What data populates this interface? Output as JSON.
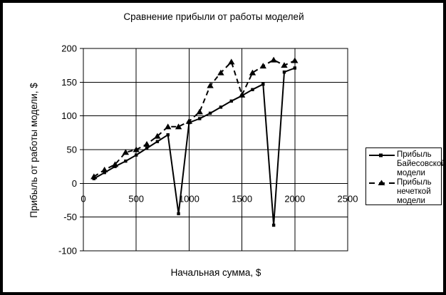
{
  "colors": {
    "foreground": "#000000",
    "background": "#ffffff",
    "grid": "#000000"
  },
  "chart_data": {
    "type": "line",
    "title": "Сравнение прибыли от работы моделей",
    "xlabel": "Начальная сумма, $",
    "ylabel": "Прибыль от работы модели, $",
    "xlim": [
      0,
      2500
    ],
    "ylim": [
      -100,
      200
    ],
    "x_ticks": [
      0,
      500,
      1000,
      1500,
      2000,
      2500
    ],
    "y_ticks": [
      200,
      150,
      100,
      50,
      0,
      -50,
      -100
    ],
    "grid": true,
    "legend_position": "right",
    "x": [
      100,
      200,
      300,
      400,
      500,
      600,
      700,
      800,
      900,
      1000,
      1100,
      1200,
      1300,
      1400,
      1500,
      1600,
      1700,
      1800,
      1900,
      2000
    ],
    "series": [
      {
        "name": "Прибыль Байесовской модели",
        "style": "solid",
        "marker": "square",
        "color": "#000000",
        "values": [
          7,
          16,
          25,
          33,
          42,
          52,
          62,
          72,
          -45,
          90,
          96,
          104,
          113,
          122,
          130,
          139,
          147,
          -62,
          165,
          171
        ]
      },
      {
        "name": "Прибыль нечеткой модели",
        "style": "dashed",
        "marker": "triangle",
        "color": "#000000",
        "values": [
          10,
          20,
          28,
          46,
          50,
          58,
          70,
          84,
          84,
          92,
          106,
          145,
          164,
          180,
          131,
          164,
          174,
          183,
          175,
          182
        ]
      }
    ]
  }
}
